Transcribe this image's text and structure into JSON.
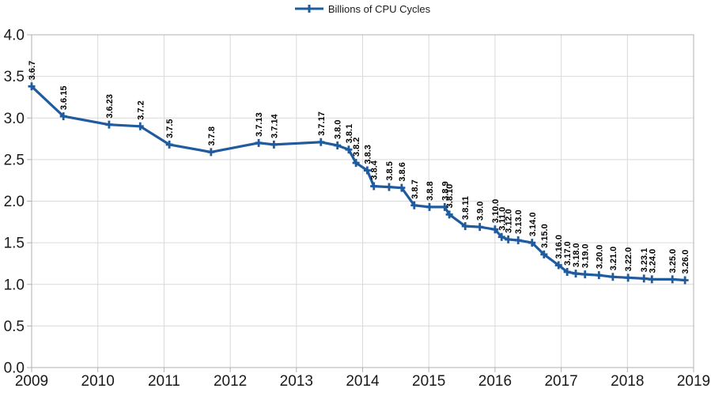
{
  "colors": {
    "series": "#1f5b9d",
    "grid": "#d9d9d9",
    "axis": "#b0b0b0",
    "tick_text": "#1a1a1a",
    "point_label_text": "#000000",
    "background": "#ffffff"
  },
  "chart_data": {
    "type": "line",
    "title": "",
    "legend_position": "top",
    "grid": true,
    "xlim": [
      2009,
      2019
    ],
    "ylim": [
      0.0,
      4.0
    ],
    "x_ticks": [
      {
        "value": 2009,
        "label": "2009"
      },
      {
        "value": 2010,
        "label": "2010"
      },
      {
        "value": 2011,
        "label": "2011"
      },
      {
        "value": 2012,
        "label": "2012"
      },
      {
        "value": 2013,
        "label": "2013"
      },
      {
        "value": 2014,
        "label": "2014"
      },
      {
        "value": 2015,
        "label": "2015"
      },
      {
        "value": 2016,
        "label": "2016"
      },
      {
        "value": 2017,
        "label": "2017"
      },
      {
        "value": 2018,
        "label": "2018"
      },
      {
        "value": 2019,
        "label": "2019"
      }
    ],
    "y_ticks": [
      {
        "value": 0.0,
        "label": "0.0"
      },
      {
        "value": 0.5,
        "label": "0.5"
      },
      {
        "value": 1.0,
        "label": "1.0"
      },
      {
        "value": 1.5,
        "label": "1.5"
      },
      {
        "value": 2.0,
        "label": "2.0"
      },
      {
        "value": 2.5,
        "label": "2.5"
      },
      {
        "value": 3.0,
        "label": "3.0"
      },
      {
        "value": 3.5,
        "label": "3.5"
      },
      {
        "value": 4.0,
        "label": "4.0"
      }
    ],
    "series": [
      {
        "name": "Billions of CPU Cycles",
        "color": "#1f5b9d",
        "marker": "plus",
        "points": [
          {
            "label": "3.6.7",
            "x": 2009.0,
            "y": 3.38
          },
          {
            "label": "3.6.15",
            "x": 2009.48,
            "y": 3.02
          },
          {
            "label": "3.6.23",
            "x": 2010.17,
            "y": 2.92
          },
          {
            "label": "3.7.2",
            "x": 2010.64,
            "y": 2.9
          },
          {
            "label": "3.7.5",
            "x": 2011.08,
            "y": 2.68
          },
          {
            "label": "3.7.8",
            "x": 2011.71,
            "y": 2.59
          },
          {
            "label": "3.7.13",
            "x": 2012.43,
            "y": 2.7
          },
          {
            "label": "3.7.14",
            "x": 2012.66,
            "y": 2.68
          },
          {
            "label": "3.7.17",
            "x": 2013.37,
            "y": 2.71
          },
          {
            "label": "3.8.0",
            "x": 2013.62,
            "y": 2.67
          },
          {
            "label": "3.8.1",
            "x": 2013.79,
            "y": 2.62
          },
          {
            "label": "3.8.2",
            "x": 2013.9,
            "y": 2.46
          },
          {
            "label": "3.8.3",
            "x": 2014.07,
            "y": 2.37
          },
          {
            "label": "3.8.4",
            "x": 2014.17,
            "y": 2.18
          },
          {
            "label": "3.8.5",
            "x": 2014.4,
            "y": 2.17
          },
          {
            "label": "3.8.6",
            "x": 2014.59,
            "y": 2.16
          },
          {
            "label": "3.8.7",
            "x": 2014.78,
            "y": 1.95
          },
          {
            "label": "3.8.8",
            "x": 2015.01,
            "y": 1.93
          },
          {
            "label": "3.8.9",
            "x": 2015.24,
            "y": 1.93
          },
          {
            "label": "3.8.10",
            "x": 2015.31,
            "y": 1.84
          },
          {
            "label": "3.8.11",
            "x": 2015.55,
            "y": 1.7
          },
          {
            "label": "3.9.0",
            "x": 2015.77,
            "y": 1.69
          },
          {
            "label": "3.10.0",
            "x": 2016.0,
            "y": 1.66
          },
          {
            "label": "3.11.0",
            "x": 2016.1,
            "y": 1.57
          },
          {
            "label": "3.12.0",
            "x": 2016.2,
            "y": 1.54
          },
          {
            "label": "3.13.0",
            "x": 2016.35,
            "y": 1.53
          },
          {
            "label": "3.14.0",
            "x": 2016.56,
            "y": 1.5
          },
          {
            "label": "3.15.0",
            "x": 2016.74,
            "y": 1.36
          },
          {
            "label": "3.16.0",
            "x": 2016.96,
            "y": 1.23
          },
          {
            "label": "3.17.0",
            "x": 2017.09,
            "y": 1.15
          },
          {
            "label": "3.18.0",
            "x": 2017.22,
            "y": 1.13
          },
          {
            "label": "3.19.0",
            "x": 2017.36,
            "y": 1.12
          },
          {
            "label": "3.20.0",
            "x": 2017.57,
            "y": 1.11
          },
          {
            "label": "3.21.0",
            "x": 2017.78,
            "y": 1.09
          },
          {
            "label": "3.22.0",
            "x": 2018.01,
            "y": 1.08
          },
          {
            "label": "3.23.1",
            "x": 2018.25,
            "y": 1.07
          },
          {
            "label": "3.24.0",
            "x": 2018.37,
            "y": 1.06
          },
          {
            "label": "3.25.0",
            "x": 2018.68,
            "y": 1.06
          },
          {
            "label": "3.26.0",
            "x": 2018.87,
            "y": 1.05
          }
        ]
      }
    ]
  }
}
